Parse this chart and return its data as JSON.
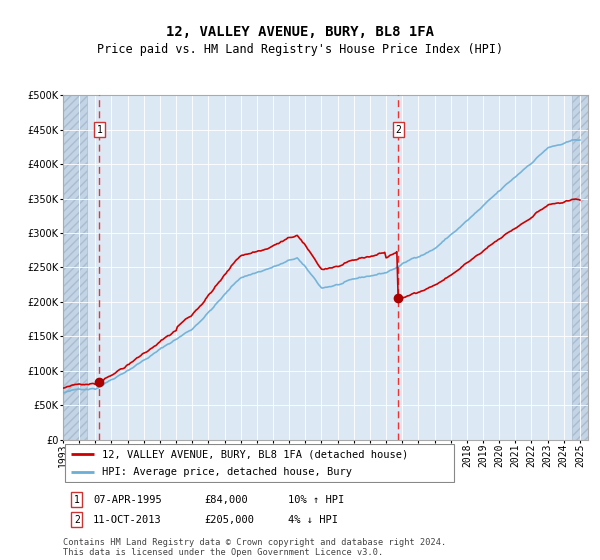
{
  "title": "12, VALLEY AVENUE, BURY, BL8 1FA",
  "subtitle": "Price paid vs. HM Land Registry's House Price Index (HPI)",
  "ylim": [
    0,
    500000
  ],
  "yticks": [
    0,
    50000,
    100000,
    150000,
    200000,
    250000,
    300000,
    350000,
    400000,
    450000,
    500000
  ],
  "sale1_year": 1995.25,
  "sale1_price": 84000,
  "sale2_year": 2013.75,
  "sale2_price": 205000,
  "hpi_line_color": "#6baed6",
  "price_line_color": "#cc0000",
  "dashed_vline_color": "#ee3333",
  "background_plot": "#dce9f5",
  "hatch_color": "#c2d4e5",
  "legend_label1": "12, VALLEY AVENUE, BURY, BL8 1FA (detached house)",
  "legend_label2": "HPI: Average price, detached house, Bury",
  "table_row1": [
    "1",
    "07-APR-1995",
    "£84,000",
    "10% ↑ HPI"
  ],
  "table_row2": [
    "2",
    "11-OCT-2013",
    "£205,000",
    "4% ↓ HPI"
  ],
  "footnote": "Contains HM Land Registry data © Crown copyright and database right 2024.\nThis data is licensed under the Open Government Licence v3.0.",
  "title_fontsize": 10,
  "subtitle_fontsize": 8.5,
  "tick_fontsize": 7,
  "xmin": 1993,
  "xmax": 2025.5,
  "hatch_left_end": 1994.5,
  "hatch_right_start": 2024.5
}
